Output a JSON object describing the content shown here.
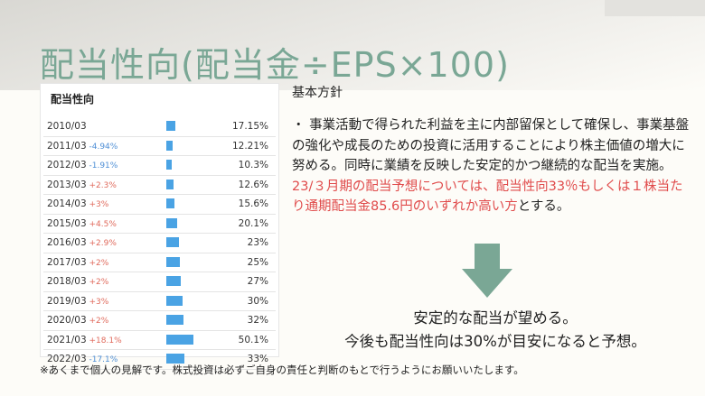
{
  "slide": {
    "title": "配当性向(配当金÷EPS×100)",
    "title_color": "#7aa795",
    "table": {
      "title": "配当性向",
      "bar_color": "#4aa3e4",
      "rows": [
        {
          "year": "2010/03",
          "change": "",
          "dir": "",
          "value": "17.15%",
          "pct": 17.15
        },
        {
          "year": "2011/03",
          "change": "-4.94%",
          "dir": "down",
          "value": "12.21%",
          "pct": 12.21
        },
        {
          "year": "2012/03",
          "change": "-1.91%",
          "dir": "down",
          "value": "10.3%",
          "pct": 10.3
        },
        {
          "year": "2013/03",
          "change": "+2.3%",
          "dir": "up",
          "value": "12.6%",
          "pct": 12.6
        },
        {
          "year": "2014/03",
          "change": "+3%",
          "dir": "up",
          "value": "15.6%",
          "pct": 15.6
        },
        {
          "year": "2015/03",
          "change": "+4.5%",
          "dir": "up",
          "value": "20.1%",
          "pct": 20.1
        },
        {
          "year": "2016/03",
          "change": "+2.9%",
          "dir": "up",
          "value": "23%",
          "pct": 23
        },
        {
          "year": "2017/03",
          "change": "+2%",
          "dir": "up",
          "value": "25%",
          "pct": 25
        },
        {
          "year": "2018/03",
          "change": "+2%",
          "dir": "up",
          "value": "27%",
          "pct": 27
        },
        {
          "year": "2019/03",
          "change": "+3%",
          "dir": "up",
          "value": "30%",
          "pct": 30
        },
        {
          "year": "2020/03",
          "change": "+2%",
          "dir": "up",
          "value": "32%",
          "pct": 32
        },
        {
          "year": "2021/03",
          "change": "+18.1%",
          "dir": "up",
          "value": "50.1%",
          "pct": 50.1
        },
        {
          "year": "2022/03",
          "change": "-17.1%",
          "dir": "down",
          "value": "33%",
          "pct": 33
        }
      ]
    },
    "policy_heading": "基本方針",
    "policy_text_plain": "・ 事業活動で得られた利益を主に内部留保として確保し、事業基盤の強化や成長のための投資に活用することにより株主価値の増大に努める。同時に業績を反映した安定的かつ継続的な配当を実施。",
    "policy_text_highlight": "23/３月期の配当予想については、配当性向33％もしくは１株当たり通期配当金85.6円のいずれか高い方",
    "policy_text_tail": "とする。",
    "highlight_color": "#e04b4b",
    "arrow_icon": "arrow-down-icon",
    "arrow_color": "#7aa795",
    "conclusion_line1": "安定的な配当が望める。",
    "conclusion_line2": "今後も配当性向は30%が目安になると予想。",
    "footer": "※あくまで個人の見解です。株式投資は必ずご自身の責任と判断のもとで行うようにお願いいたします。"
  }
}
